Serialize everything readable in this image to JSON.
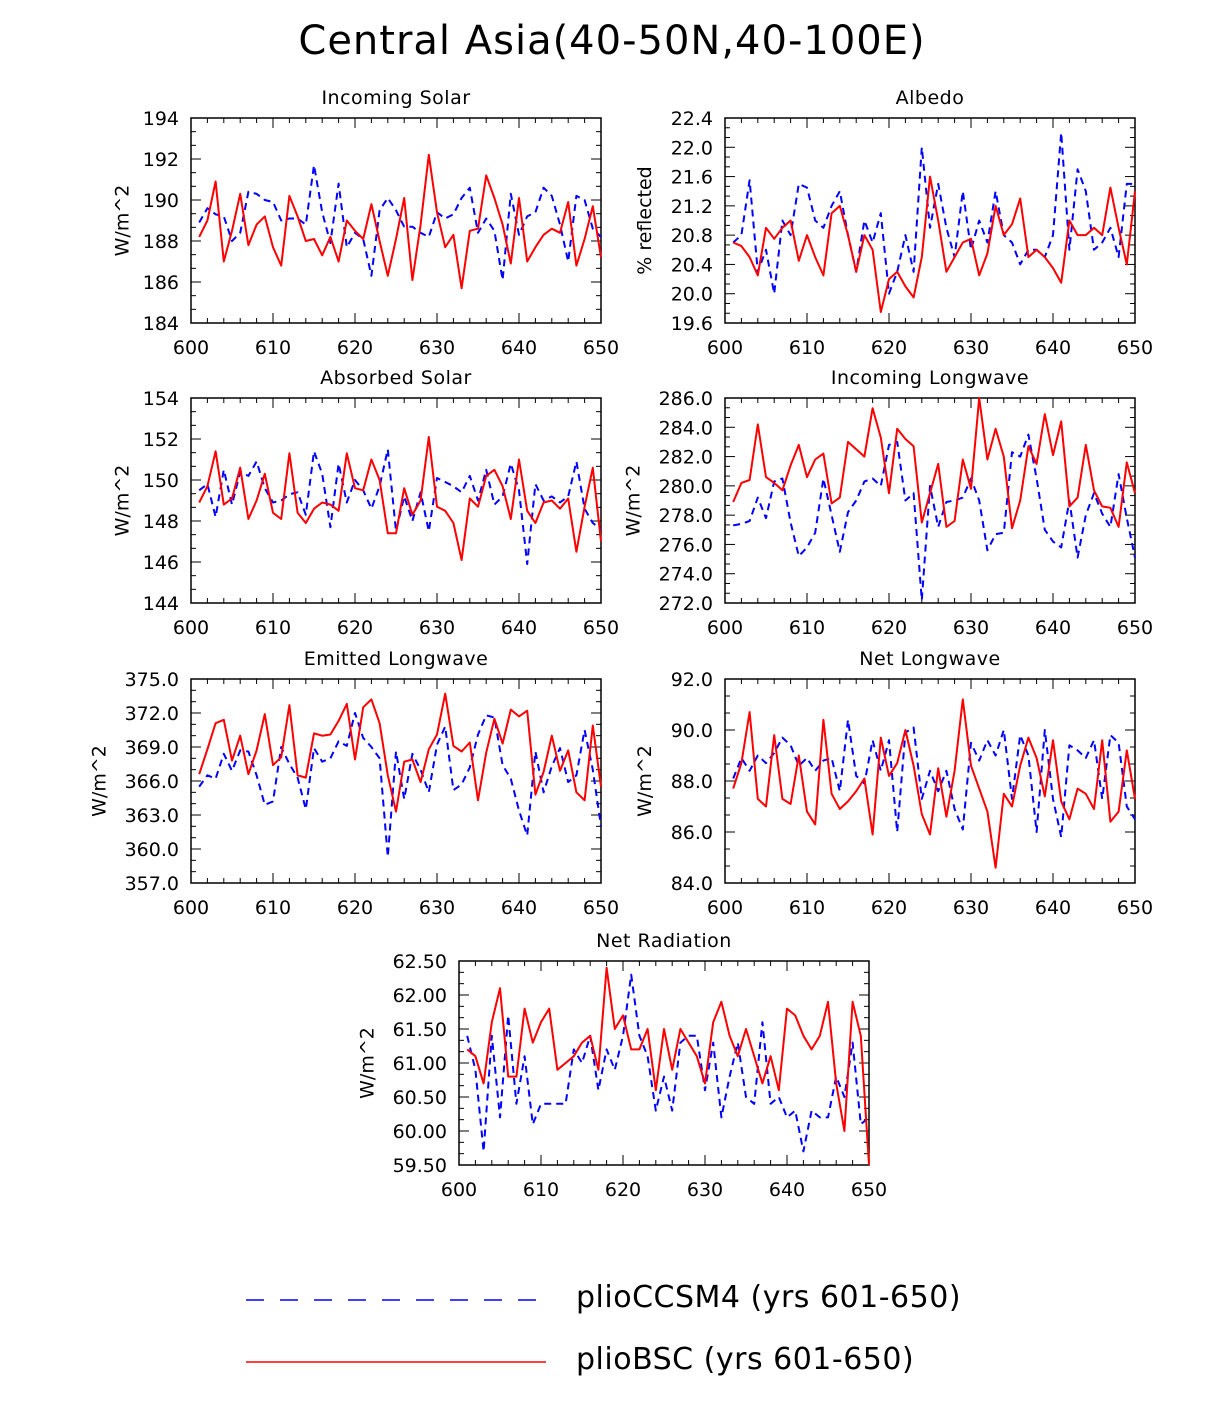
{
  "figure": {
    "title": "Central Asia(40-50N,40-100E)",
    "legend": [
      {
        "label": "plioCCSM4 (yrs 601-650)",
        "color": "#0000ff",
        "style": "dashed"
      },
      {
        "label": "plioBSC (yrs 601-650)",
        "color": "#ff0000",
        "style": "solid"
      }
    ]
  },
  "chart_data": [
    {
      "type": "line",
      "title": "Incoming Solar",
      "ylabel": "W/m^2",
      "xlim": [
        600,
        650
      ],
      "xticks": [
        "600",
        "610",
        "620",
        "630",
        "640",
        "650"
      ],
      "ylim": [
        184,
        194
      ],
      "yticks": [
        "184",
        "186",
        "188",
        "190",
        "192",
        "194"
      ],
      "minor": 2,
      "series": [
        {
          "name": "plioCCSM4 (yrs 601-650)",
          "color": "#0000ff",
          "dash": true,
          "x0": 601,
          "values": [
            188.9,
            189.6,
            189.3,
            189.2,
            188.0,
            188.4,
            190.4,
            190.3,
            190.0,
            189.9,
            189.0,
            189.1,
            189.1,
            188.8,
            191.7,
            189.4,
            187.9,
            190.8,
            187.7,
            188.4,
            188.1,
            186.3,
            189.5,
            190.1,
            189.5,
            188.7,
            188.7,
            188.4,
            188.2,
            189.4,
            189.1,
            189.3,
            190.1,
            190.6,
            188.4,
            189.1,
            188.5,
            186.1,
            190.3,
            188.3,
            189.2,
            189.4,
            190.6,
            190.2,
            188.8,
            187.0,
            190.2,
            190.0,
            188.6,
            188.2
          ]
        },
        {
          "name": "plioBSC (yrs 601-650)",
          "color": "#ff0000",
          "dash": false,
          "x0": 601,
          "values": [
            188.2,
            189.0,
            190.9,
            187.0,
            188.5,
            190.3,
            187.8,
            188.8,
            189.2,
            187.7,
            186.8,
            190.2,
            189.2,
            188.0,
            188.1,
            187.3,
            188.2,
            187.0,
            189.0,
            188.5,
            188.1,
            189.8,
            188.0,
            186.3,
            188.1,
            190.1,
            186.1,
            188.8,
            192.2,
            189.4,
            187.7,
            188.3,
            185.7,
            188.5,
            188.6,
            191.2,
            190.1,
            188.8,
            186.9,
            190.1,
            187.0,
            187.7,
            188.3,
            188.6,
            188.4,
            189.9,
            186.8,
            188.1,
            189.7,
            187.2
          ]
        }
      ]
    },
    {
      "type": "line",
      "title": "Albedo",
      "ylabel": "% reflected",
      "xlim": [
        600,
        650
      ],
      "xticks": [
        "600",
        "610",
        "620",
        "630",
        "640",
        "650"
      ],
      "ylim": [
        19.6,
        22.4
      ],
      "yticks": [
        "19.6",
        "20.0",
        "20.4",
        "20.8",
        "21.2",
        "21.6",
        "22.0",
        "22.4"
      ],
      "minor": 2,
      "series": [
        {
          "name": "plioCCSM4 (yrs 601-650)",
          "color": "#0000ff",
          "dash": true,
          "x0": 601,
          "values": [
            20.7,
            20.8,
            21.55,
            20.3,
            20.6,
            20.0,
            21.0,
            20.8,
            21.5,
            21.45,
            21.0,
            20.9,
            21.2,
            21.4,
            20.8,
            20.3,
            21.0,
            20.7,
            21.1,
            20.0,
            20.3,
            20.8,
            20.3,
            22.0,
            20.9,
            21.5,
            20.9,
            20.5,
            21.4,
            20.6,
            21.0,
            20.7,
            21.4,
            20.8,
            20.7,
            20.4,
            20.6,
            20.6,
            20.5,
            20.8,
            22.2,
            20.6,
            21.7,
            21.4,
            20.6,
            20.7,
            20.9,
            20.5,
            21.5,
            21.5
          ]
        },
        {
          "name": "plioBSC (yrs 601-650)",
          "color": "#ff0000",
          "dash": false,
          "x0": 601,
          "values": [
            20.7,
            20.65,
            20.5,
            20.25,
            20.9,
            20.75,
            20.9,
            21.0,
            20.45,
            20.8,
            20.5,
            20.25,
            21.1,
            21.2,
            20.8,
            20.3,
            20.8,
            20.6,
            19.75,
            20.2,
            20.3,
            20.1,
            19.95,
            20.5,
            21.6,
            21.0,
            20.3,
            20.5,
            20.7,
            20.75,
            20.25,
            20.55,
            21.2,
            20.8,
            20.95,
            21.3,
            20.5,
            20.6,
            20.5,
            20.35,
            20.15,
            21.0,
            20.8,
            20.8,
            20.9,
            20.8,
            21.45,
            20.9,
            20.4,
            21.4
          ]
        }
      ]
    },
    {
      "type": "line",
      "title": "Absorbed Solar",
      "ylabel": "W/m^2",
      "xlim": [
        600,
        650
      ],
      "xticks": [
        "600",
        "610",
        "620",
        "630",
        "640",
        "650"
      ],
      "ylim": [
        144,
        154
      ],
      "yticks": [
        "144",
        "146",
        "148",
        "150",
        "152",
        "154"
      ],
      "minor": 2,
      "series": [
        {
          "name": "plioCCSM4 (yrs 601-650)",
          "color": "#0000ff",
          "dash": true,
          "x0": 601,
          "values": [
            149.5,
            149.8,
            148.2,
            150.5,
            148.8,
            150.4,
            150.2,
            150.9,
            149.6,
            148.9,
            149.0,
            149.3,
            149.4,
            148.3,
            151.4,
            150.3,
            147.7,
            150.8,
            148.9,
            150.0,
            149.5,
            148.6,
            149.7,
            151.5,
            147.5,
            149.2,
            148.0,
            149.4,
            147.5,
            150.1,
            149.9,
            149.7,
            149.4,
            150.2,
            149.0,
            150.5,
            148.8,
            149.2,
            150.8,
            149.5,
            145.9,
            149.8,
            149.0,
            149.2,
            148.9,
            149.2,
            150.9,
            148.6,
            147.9,
            147.6
          ]
        },
        {
          "name": "plioBSC (yrs 601-650)",
          "color": "#ff0000",
          "dash": false,
          "x0": 601,
          "values": [
            148.9,
            149.7,
            151.4,
            148.8,
            149.1,
            150.6,
            148.1,
            149.0,
            150.3,
            148.4,
            148.1,
            151.3,
            148.4,
            147.9,
            148.6,
            148.9,
            148.8,
            148.5,
            151.3,
            149.6,
            149.5,
            151.0,
            150.0,
            147.4,
            147.4,
            149.6,
            148.3,
            149.0,
            152.1,
            148.7,
            148.5,
            147.9,
            146.1,
            149.1,
            148.7,
            150.2,
            150.5,
            149.7,
            148.1,
            151.0,
            148.5,
            147.9,
            148.9,
            149.0,
            148.6,
            149.1,
            146.5,
            148.7,
            150.6,
            147.0
          ]
        }
      ]
    },
    {
      "type": "line",
      "title": "Incoming Longwave",
      "ylabel": "W/m^2",
      "xlim": [
        600,
        650
      ],
      "xticks": [
        "600",
        "610",
        "620",
        "630",
        "640",
        "650"
      ],
      "ylim": [
        272.0,
        286.0
      ],
      "yticks": [
        "272.0",
        "274.0",
        "276.0",
        "278.0",
        "280.0",
        "282.0",
        "284.0",
        "286.0"
      ],
      "minor": 2,
      "series": [
        {
          "name": "plioCCSM4 (yrs 601-650)",
          "color": "#0000ff",
          "dash": true,
          "x0": 601,
          "values": [
            277.3,
            277.4,
            277.6,
            279.2,
            277.8,
            280.3,
            280.5,
            277.5,
            275.2,
            275.8,
            276.8,
            280.5,
            278.0,
            275.5,
            278.2,
            279.0,
            280.3,
            280.5,
            280.0,
            282.8,
            283.0,
            279.0,
            279.5,
            272.2,
            280.0,
            277.2,
            278.9,
            279.0,
            279.2,
            280.5,
            279.0,
            275.6,
            276.7,
            276.8,
            282.3,
            282.0,
            283.5,
            280.5,
            277.0,
            276.2,
            275.8,
            279.0,
            275.1,
            278.0,
            279.5,
            278.1,
            277.2,
            280.8,
            277.8,
            275.1
          ]
        },
        {
          "name": "plioBSC (yrs 601-650)",
          "color": "#ff0000",
          "dash": false,
          "x0": 601,
          "values": [
            278.9,
            280.2,
            280.4,
            284.2,
            280.6,
            280.2,
            279.7,
            281.4,
            282.8,
            280.6,
            281.8,
            282.2,
            278.8,
            279.2,
            283.0,
            282.5,
            282.0,
            285.3,
            283.3,
            279.5,
            283.9,
            283.2,
            282.7,
            277.5,
            279.5,
            281.5,
            277.2,
            277.6,
            281.8,
            279.8,
            286.0,
            281.8,
            283.9,
            282.0,
            277.1,
            279.0,
            282.7,
            281.5,
            284.9,
            282.1,
            284.4,
            278.6,
            279.2,
            282.8,
            279.7,
            278.6,
            278.5,
            277.2,
            281.6,
            279.5
          ]
        }
      ]
    },
    {
      "type": "line",
      "title": "Emitted Longwave",
      "ylabel": "W/m^2",
      "xlim": [
        600,
        650
      ],
      "xticks": [
        "600",
        "610",
        "620",
        "630",
        "640",
        "650"
      ],
      "ylim": [
        357.0,
        375.0
      ],
      "yticks": [
        "357.0",
        "360.0",
        "363.0",
        "366.0",
        "369.0",
        "372.0",
        "375.0"
      ],
      "minor": 2,
      "series": [
        {
          "name": "plioCCSM4 (yrs 601-650)",
          "color": "#0000ff",
          "dash": true,
          "x0": 601,
          "values": [
            365.5,
            366.5,
            366.2,
            368.4,
            366.9,
            368.7,
            368.6,
            366.5,
            363.9,
            364.2,
            369.0,
            367.5,
            366.3,
            363.5,
            368.9,
            367.7,
            368.0,
            369.5,
            369.1,
            372.0,
            369.8,
            369.0,
            368.0,
            359.3,
            368.6,
            364.4,
            368.4,
            367.0,
            365.0,
            369.2,
            370.8,
            365.2,
            365.7,
            367.2,
            370.1,
            371.8,
            371.6,
            367.4,
            366.2,
            363.4,
            361.2,
            368.6,
            365.0,
            367.3,
            368.9,
            365.9,
            366.5,
            370.5,
            367.0,
            362.0
          ]
        },
        {
          "name": "plioBSC (yrs 601-650)",
          "color": "#ff0000",
          "dash": false,
          "x0": 601,
          "values": [
            366.6,
            368.8,
            371.1,
            371.4,
            367.8,
            370.0,
            366.6,
            368.7,
            371.9,
            367.4,
            368.1,
            372.7,
            366.5,
            366.3,
            370.2,
            370.0,
            370.1,
            371.3,
            372.8,
            367.9,
            372.5,
            373.2,
            371.1,
            366.5,
            363.3,
            367.7,
            367.9,
            365.9,
            368.8,
            370.1,
            373.7,
            369.1,
            368.6,
            369.4,
            364.3,
            368.5,
            371.5,
            369.3,
            372.3,
            371.7,
            372.2,
            364.8,
            366.8,
            370.0,
            366.9,
            368.7,
            365.0,
            364.3,
            370.9,
            365.5
          ]
        }
      ]
    },
    {
      "type": "line",
      "title": "Net Longwave",
      "ylabel": "W/m^2",
      "xlim": [
        600,
        650
      ],
      "xticks": [
        "600",
        "610",
        "620",
        "630",
        "640",
        "650"
      ],
      "ylim": [
        84.0,
        92.0
      ],
      "yticks": [
        "84.0",
        "86.0",
        "88.0",
        "90.0",
        "92.0"
      ],
      "minor": 2,
      "series": [
        {
          "name": "plioCCSM4 (yrs 601-650)",
          "color": "#0000ff",
          "dash": true,
          "x0": 601,
          "values": [
            88.1,
            88.9,
            88.4,
            89.0,
            88.7,
            89.1,
            89.7,
            89.4,
            88.6,
            88.9,
            88.4,
            88.8,
            88.9,
            87.6,
            90.4,
            88.2,
            87.9,
            89.6,
            88.4,
            89.6,
            86.0,
            89.9,
            90.1,
            87.3,
            88.4,
            87.6,
            88.4,
            86.9,
            86.1,
            89.5,
            88.8,
            89.6,
            89.0,
            90.0,
            87.3,
            89.8,
            89.0,
            86.0,
            90.0,
            87.3,
            85.8,
            89.4,
            89.2,
            88.9,
            89.6,
            87.3,
            89.8,
            89.5,
            87.0,
            86.5
          ]
        },
        {
          "name": "plioBSC (yrs 601-650)",
          "color": "#ff0000",
          "dash": false,
          "x0": 601,
          "values": [
            87.7,
            88.7,
            90.7,
            87.3,
            87.0,
            89.8,
            87.3,
            87.1,
            89.0,
            86.8,
            86.3,
            90.4,
            87.5,
            86.9,
            87.2,
            87.6,
            88.1,
            85.9,
            89.7,
            88.2,
            88.7,
            90.0,
            88.6,
            86.7,
            85.9,
            88.5,
            86.6,
            88.4,
            91.2,
            88.6,
            87.7,
            86.8,
            84.6,
            87.5,
            87.0,
            88.6,
            89.7,
            88.9,
            87.4,
            89.6,
            87.2,
            86.5,
            87.7,
            87.5,
            86.9,
            89.6,
            86.4,
            86.8,
            89.2,
            87.3
          ]
        }
      ]
    },
    {
      "type": "line",
      "title": "Net Radiation",
      "ylabel": "W/m^2",
      "xlim": [
        600,
        650
      ],
      "xticks": [
        "600",
        "610",
        "620",
        "630",
        "640",
        "650"
      ],
      "ylim": [
        59.5,
        62.5
      ],
      "yticks": [
        "59.50",
        "60.00",
        "60.50",
        "61.00",
        "61.50",
        "62.00",
        "62.50"
      ],
      "minor": 2,
      "series": [
        {
          "name": "plioCCSM4 (yrs 601-650)",
          "color": "#0000ff",
          "dash": true,
          "x0": 601,
          "values": [
            61.4,
            60.9,
            59.7,
            61.4,
            60.2,
            61.7,
            60.4,
            61.1,
            60.1,
            60.4,
            60.4,
            60.4,
            60.4,
            61.2,
            61.0,
            61.4,
            60.6,
            61.2,
            60.9,
            61.4,
            62.3,
            61.4,
            61.1,
            60.3,
            60.8,
            60.3,
            61.3,
            61.4,
            61.4,
            60.6,
            61.3,
            60.2,
            60.8,
            61.3,
            60.5,
            60.4,
            61.6,
            60.4,
            60.5,
            60.2,
            60.3,
            59.7,
            60.3,
            60.2,
            60.2,
            60.8,
            60.5,
            61.3,
            60.1,
            60.2
          ]
        },
        {
          "name": "plioBSC (yrs 601-650)",
          "color": "#ff0000",
          "dash": false,
          "x0": 601,
          "values": [
            61.2,
            61.1,
            60.7,
            61.6,
            62.1,
            60.8,
            60.8,
            61.8,
            61.3,
            61.6,
            61.8,
            60.9,
            61.0,
            61.1,
            61.3,
            61.4,
            60.9,
            62.4,
            61.5,
            61.7,
            61.2,
            61.2,
            61.5,
            60.6,
            61.5,
            60.9,
            61.5,
            61.3,
            61.1,
            60.7,
            61.6,
            61.9,
            61.4,
            61.1,
            61.5,
            61.1,
            60.7,
            61.1,
            60.6,
            61.8,
            61.7,
            61.4,
            61.2,
            61.4,
            61.9,
            60.7,
            60.0,
            61.9,
            61.4,
            59.5
          ]
        }
      ]
    }
  ]
}
